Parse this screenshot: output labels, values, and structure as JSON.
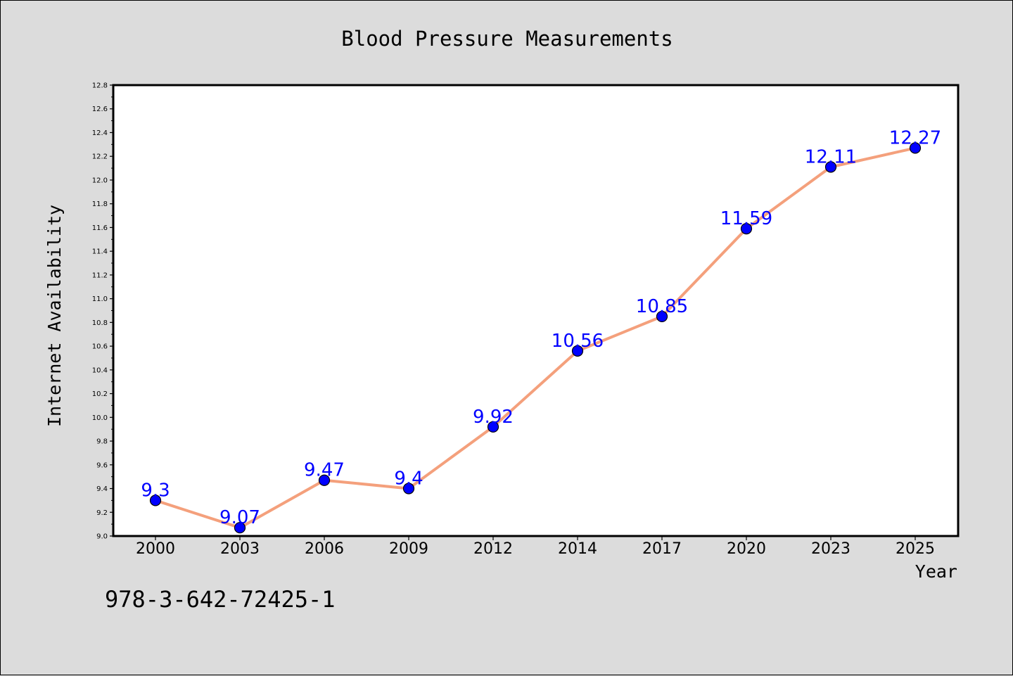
{
  "chart_data": {
    "type": "line",
    "title": "Blood Pressure Measurements",
    "xlabel": "Year",
    "ylabel": "Internet Availability",
    "categories": [
      "2000",
      "2003",
      "2006",
      "2009",
      "2012",
      "2014",
      "2017",
      "2020",
      "2023",
      "2025"
    ],
    "series": [
      {
        "values": [
          9.3,
          9.07,
          9.47,
          9.4,
          9.92,
          10.56,
          10.85,
          11.59,
          12.11,
          12.27
        ],
        "labels": [
          "9.3",
          "9.07",
          "9.47",
          "9.4",
          "9.92",
          "10.56",
          "10.85",
          "11.59",
          "12.11",
          "12.27"
        ],
        "line_color": "#f4a07c",
        "marker_color": "#0000ff"
      }
    ],
    "ylim": [
      9.0,
      12.8
    ],
    "yticks": [
      "9.0",
      "9.2",
      "9.4",
      "9.6",
      "9.8",
      "10.0",
      "10.2",
      "10.4",
      "10.6",
      "10.8",
      "11.0",
      "11.2",
      "11.4",
      "11.6",
      "11.8",
      "12.0",
      "12.2",
      "12.4",
      "12.6",
      "12.8"
    ],
    "grid": false,
    "legend": "none"
  },
  "footer": {
    "isbn": "978-3-642-72425-1"
  }
}
